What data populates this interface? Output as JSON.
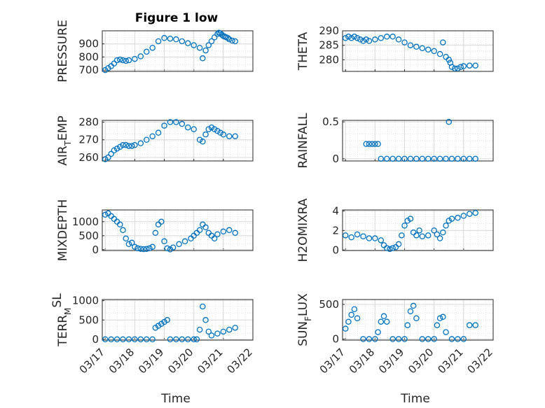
{
  "figure": {
    "title": "Figure 1 low"
  },
  "chart_data": [
    {
      "type": "scatter",
      "ylabel": "PRESSURE",
      "ylim": [
        690,
        1000
      ],
      "yticks": [
        700,
        800,
        900
      ],
      "ytick_labels": [
        "700",
        "800",
        "900"
      ],
      "x": [
        0.0,
        0.1,
        0.2,
        0.3,
        0.4,
        0.5,
        0.6,
        0.7,
        0.8,
        1.0,
        1.2,
        1.4,
        1.6,
        1.8,
        2.0,
        2.2,
        2.4,
        2.6,
        2.8,
        3.0,
        3.2,
        3.3,
        3.4,
        3.5,
        3.6,
        3.7,
        3.8,
        3.85,
        3.9,
        3.95,
        4.0,
        4.05,
        4.1,
        4.15,
        4.2,
        4.3,
        4.4
      ],
      "values": [
        700,
        715,
        730,
        750,
        775,
        780,
        775,
        770,
        775,
        785,
        805,
        840,
        870,
        920,
        945,
        940,
        935,
        920,
        905,
        890,
        870,
        790,
        850,
        890,
        920,
        950,
        975,
        985,
        980,
        970,
        960,
        955,
        950,
        945,
        935,
        925,
        920
      ]
    },
    {
      "type": "scatter",
      "ylabel": "THETA",
      "ylim": [
        276,
        290
      ],
      "yticks": [
        280,
        285,
        290
      ],
      "ytick_labels": [
        "280",
        "285",
        "290"
      ],
      "x": [
        0.0,
        0.1,
        0.2,
        0.3,
        0.4,
        0.5,
        0.6,
        0.7,
        0.8,
        1.0,
        1.2,
        1.4,
        1.6,
        1.8,
        2.0,
        2.2,
        2.4,
        2.6,
        2.8,
        3.0,
        3.2,
        3.3,
        3.4,
        3.5,
        3.55,
        3.6,
        3.7,
        3.8,
        3.9,
        4.0,
        4.2,
        4.4
      ],
      "values": [
        287.5,
        288,
        287.5,
        288,
        287.5,
        287,
        286.5,
        287,
        286.5,
        287,
        287.5,
        288,
        288,
        287,
        286,
        285,
        284.5,
        284,
        283.5,
        283,
        282,
        286,
        281,
        280,
        279,
        277.5,
        277,
        277,
        277.5,
        277.8,
        278,
        278
      ]
    },
    {
      "type": "scatter",
      "ylabel": "AIR_TEMP",
      "ylim": [
        258,
        281
      ],
      "yticks": [
        260,
        270,
        280
      ],
      "ytick_labels": [
        "260",
        "270",
        "280"
      ],
      "x": [
        0.0,
        0.1,
        0.2,
        0.3,
        0.4,
        0.5,
        0.6,
        0.7,
        0.8,
        0.9,
        1.0,
        1.2,
        1.4,
        1.6,
        1.8,
        2.0,
        2.2,
        2.4,
        2.6,
        2.8,
        3.0,
        3.2,
        3.3,
        3.4,
        3.5,
        3.6,
        3.7,
        3.8,
        3.9,
        4.0,
        4.2,
        4.4
      ],
      "values": [
        259,
        260,
        262,
        264,
        265,
        266,
        267,
        267,
        266.5,
        266.5,
        267,
        268,
        270,
        272,
        274,
        278,
        280,
        280,
        279,
        277,
        276,
        270,
        269,
        273,
        276,
        277,
        276,
        275,
        274,
        273,
        272,
        272
      ]
    },
    {
      "type": "scatter",
      "ylabel": "RAINFALL",
      "ylim": [
        -0.03,
        0.52
      ],
      "yticks": [
        0,
        0.5
      ],
      "ytick_labels": [
        "0",
        "0.5"
      ],
      "x": [
        0.7,
        0.8,
        0.9,
        1.0,
        1.1,
        1.2,
        1.4,
        1.6,
        1.8,
        2.0,
        2.2,
        2.4,
        2.6,
        2.8,
        3.0,
        3.2,
        3.4,
        3.5,
        3.6,
        3.8,
        4.0,
        4.2,
        4.4
      ],
      "values": [
        0.2,
        0.2,
        0.2,
        0.2,
        0.2,
        0,
        0,
        0,
        0,
        0,
        0,
        0,
        0,
        0,
        0,
        0,
        0,
        0.5,
        0,
        0,
        0,
        0,
        0
      ]
    },
    {
      "type": "scatter",
      "ylabel": "MIXDEPTH",
      "ylim": [
        -30,
        1420
      ],
      "yticks": [
        0,
        500,
        1000
      ],
      "ytick_labels": [
        "0",
        "500",
        "1000"
      ],
      "x": [
        0.0,
        0.1,
        0.2,
        0.3,
        0.4,
        0.5,
        0.6,
        0.7,
        0.8,
        0.9,
        1.0,
        1.1,
        1.2,
        1.3,
        1.4,
        1.5,
        1.6,
        1.7,
        1.8,
        1.9,
        2.0,
        2.1,
        2.2,
        2.3,
        2.5,
        2.7,
        2.9,
        3.0,
        3.1,
        3.2,
        3.3,
        3.4,
        3.5,
        3.6,
        3.7,
        3.8,
        4.0,
        4.2,
        4.4
      ],
      "values": [
        1250,
        1300,
        1200,
        1100,
        1000,
        900,
        700,
        400,
        200,
        250,
        100,
        50,
        30,
        20,
        25,
        50,
        100,
        600,
        900,
        1000,
        300,
        50,
        10,
        80,
        200,
        300,
        400,
        500,
        600,
        700,
        900,
        800,
        600,
        500,
        400,
        550,
        650,
        700,
        600
      ]
    },
    {
      "type": "scatter",
      "ylabel": "H2OMIXRA",
      "ylim": [
        -0.05,
        4.1
      ],
      "yticks": [
        0,
        2,
        4
      ],
      "ytick_labels": [
        "0",
        "2",
        "4"
      ],
      "x": [
        0.0,
        0.2,
        0.4,
        0.6,
        0.8,
        1.0,
        1.2,
        1.3,
        1.4,
        1.5,
        1.6,
        1.7,
        1.8,
        1.9,
        2.0,
        2.1,
        2.2,
        2.3,
        2.4,
        2.5,
        2.6,
        2.8,
        3.0,
        3.1,
        3.2,
        3.3,
        3.4,
        3.5,
        3.6,
        3.8,
        4.0,
        4.2,
        4.4
      ],
      "values": [
        1.5,
        1.3,
        1.6,
        1.4,
        1.2,
        1.2,
        1.0,
        0.5,
        0.2,
        0.1,
        0.2,
        0.3,
        0.6,
        1.5,
        2.5,
        3.0,
        3.2,
        1.8,
        1.5,
        2.0,
        1.4,
        1.5,
        2.0,
        1.6,
        1.2,
        1.8,
        2.5,
        3.0,
        3.2,
        3.3,
        3.5,
        3.7,
        3.8
      ]
    },
    {
      "type": "scatter",
      "ylabel": "TERR_MSL",
      "ylim": [
        -20,
        1030
      ],
      "yticks": [
        0,
        500,
        1000
      ],
      "ytick_labels": [
        "0",
        "500",
        "1000"
      ],
      "x": [
        0.0,
        0.2,
        0.4,
        0.6,
        0.8,
        1.0,
        1.2,
        1.4,
        1.6,
        1.7,
        1.8,
        1.9,
        2.0,
        2.1,
        2.2,
        2.4,
        2.6,
        2.8,
        3.0,
        3.1,
        3.2,
        3.3,
        3.4,
        3.5,
        3.6,
        3.8,
        4.0,
        4.2,
        4.4
      ],
      "values": [
        0,
        0,
        0,
        0,
        0,
        0,
        0,
        0,
        0,
        300,
        350,
        400,
        450,
        500,
        0,
        0,
        0,
        0,
        0,
        0,
        250,
        850,
        500,
        200,
        100,
        150,
        200,
        250,
        300
      ]
    },
    {
      "type": "scatter",
      "ylabel": "SUN_FLUX",
      "ylim": [
        -15,
        570
      ],
      "yticks": [
        0,
        500
      ],
      "ytick_labels": [
        "0",
        "500"
      ],
      "x": [
        0.0,
        0.1,
        0.2,
        0.3,
        0.4,
        0.6,
        0.8,
        1.0,
        1.1,
        1.2,
        1.3,
        1.4,
        1.6,
        1.8,
        2.0,
        2.1,
        2.2,
        2.3,
        2.4,
        2.6,
        2.8,
        3.0,
        3.1,
        3.2,
        3.3,
        3.4,
        3.6,
        3.8,
        4.0,
        4.2,
        4.4
      ],
      "values": [
        150,
        250,
        350,
        430,
        300,
        0,
        0,
        0,
        100,
        250,
        330,
        250,
        0,
        0,
        0,
        200,
        400,
        480,
        300,
        0,
        0,
        0,
        200,
        300,
        320,
        100,
        0,
        0,
        0,
        200,
        200
      ]
    }
  ],
  "x_axis": {
    "xlabel": "Time",
    "tick_labels": [
      "03/17",
      "03/18",
      "03/19",
      "03/20",
      "03/21",
      "03/22"
    ]
  }
}
